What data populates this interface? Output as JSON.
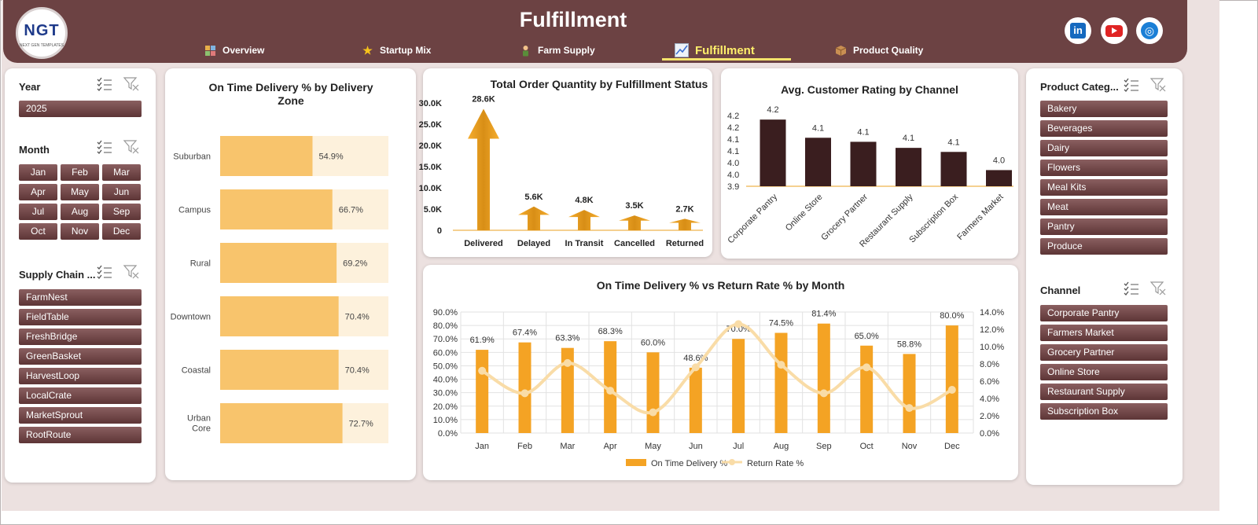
{
  "header": {
    "title": "Fulfillment",
    "logo_text": "NGT",
    "logo_sub": "NEXT GEN TEMPLATES",
    "tabs": [
      {
        "label": "Overview",
        "icon": "overview-icon"
      },
      {
        "label": "Startup Mix",
        "icon": "star-icon"
      },
      {
        "label": "Farm Supply",
        "icon": "farmer-icon"
      },
      {
        "label": "Fulfillment",
        "icon": "line-chart-icon",
        "active": true
      },
      {
        "label": "Product Quality",
        "icon": "package-icon"
      }
    ],
    "social": [
      "linkedin-icon",
      "youtube-icon",
      "globe-icon"
    ]
  },
  "left_slicers": {
    "year": {
      "title": "Year",
      "items": [
        "2025"
      ]
    },
    "month": {
      "title": "Month",
      "items": [
        "Jan",
        "Feb",
        "Mar",
        "Apr",
        "May",
        "Jun",
        "Jul",
        "Aug",
        "Sep",
        "Oct",
        "Nov",
        "Dec"
      ]
    },
    "supply_chain": {
      "title": "Supply Chain ...",
      "items": [
        "FarmNest",
        "FieldTable",
        "FreshBridge",
        "GreenBasket",
        "HarvestLoop",
        "LocalCrate",
        "MarketSprout",
        "RootRoute"
      ]
    }
  },
  "right_slicers": {
    "product_category": {
      "title": "Product Categ...",
      "items": [
        "Bakery",
        "Beverages",
        "Dairy",
        "Flowers",
        "Meal Kits",
        "Meat",
        "Pantry",
        "Produce"
      ]
    },
    "channel": {
      "title": "Channel",
      "items": [
        "Corporate Pantry",
        "Farmers Market",
        "Grocery Partner",
        "Online Store",
        "Restaurant Supply",
        "Subscription Box"
      ]
    }
  },
  "colors": {
    "brand": "#6c4243",
    "accent": "#f4a324",
    "bar_light": "#f8c46c",
    "bar_dark": "#3a1e1f",
    "line": "#f9dca7"
  },
  "chart_data": [
    {
      "type": "bar",
      "orientation": "horizontal",
      "title": "On Time Delivery % by Delivery Zone",
      "categories": [
        "Suburban",
        "Campus",
        "Rural",
        "Downtown",
        "Coastal",
        "Urban Core"
      ],
      "values": [
        54.9,
        66.7,
        69.2,
        70.4,
        70.4,
        72.7
      ],
      "labels": [
        "54.9%",
        "66.7%",
        "69.2%",
        "70.4%",
        "70.4%",
        "72.7%"
      ],
      "xlim": [
        0,
        100
      ]
    },
    {
      "type": "bar",
      "title": "Total Order Quantity by Fulfillment Status",
      "categories": [
        "Delivered",
        "Delayed",
        "In Transit",
        "Cancelled",
        "Returned"
      ],
      "values": [
        28600,
        5600,
        4800,
        3500,
        2700
      ],
      "labels": [
        "28.6K",
        "5.6K",
        "4.8K",
        "3.5K",
        "2.7K"
      ],
      "yticks": [
        "0",
        "5.0K",
        "10.0K",
        "15.0K",
        "20.0K",
        "25.0K",
        "30.0K"
      ],
      "ylim": [
        0,
        30000
      ]
    },
    {
      "type": "bar",
      "title": "Avg. Customer Rating by Channel",
      "categories": [
        "Corporate Pantry",
        "Online Store",
        "Grocery Partner",
        "Restaurant Supply",
        "Subscription Box",
        "Farmers Market"
      ],
      "values": [
        4.23,
        4.14,
        4.12,
        4.09,
        4.07,
        3.98
      ],
      "labels": [
        "4.2",
        "4.1",
        "4.1",
        "4.1",
        "4.1",
        "4.0"
      ],
      "yticks": [
        "3.9",
        "4.0",
        "4.0",
        "4.1",
        "4.1",
        "4.2",
        "4.2"
      ],
      "ylim": [
        3.9,
        4.25
      ]
    },
    {
      "type": "bar",
      "title": "On Time Delivery % vs Return Rate % by Month",
      "categories": [
        "Jan",
        "Feb",
        "Mar",
        "Apr",
        "May",
        "Jun",
        "Jul",
        "Aug",
        "Sep",
        "Oct",
        "Nov",
        "Dec"
      ],
      "series": [
        {
          "name": "On Time Delivery %",
          "type": "bar",
          "axis": "left",
          "values": [
            61.9,
            67.4,
            63.3,
            68.3,
            60.0,
            48.6,
            70.0,
            74.5,
            81.4,
            65.0,
            58.8,
            80.0
          ],
          "labels": [
            "61.9%",
            "67.4%",
            "63.3%",
            "68.3%",
            "60.0%",
            "48.6%",
            "70.0%",
            "74.5%",
            "81.4%",
            "65.0%",
            "58.8%",
            "80.0%"
          ]
        },
        {
          "name": "Return Rate %",
          "type": "line",
          "axis": "right",
          "values": [
            7.2,
            4.6,
            8.1,
            4.9,
            2.4,
            7.6,
            12.6,
            7.9,
            4.6,
            7.6,
            2.9,
            5.0
          ]
        }
      ],
      "yticks_left": [
        "0.0%",
        "10.0%",
        "20.0%",
        "30.0%",
        "40.0%",
        "50.0%",
        "60.0%",
        "70.0%",
        "80.0%",
        "90.0%"
      ],
      "yticks_right": [
        "0.0%",
        "2.0%",
        "4.0%",
        "6.0%",
        "8.0%",
        "10.0%",
        "12.0%",
        "14.0%"
      ],
      "ylim_left": [
        0,
        90
      ],
      "ylim_right": [
        0,
        14
      ],
      "legend": "bottom"
    }
  ]
}
